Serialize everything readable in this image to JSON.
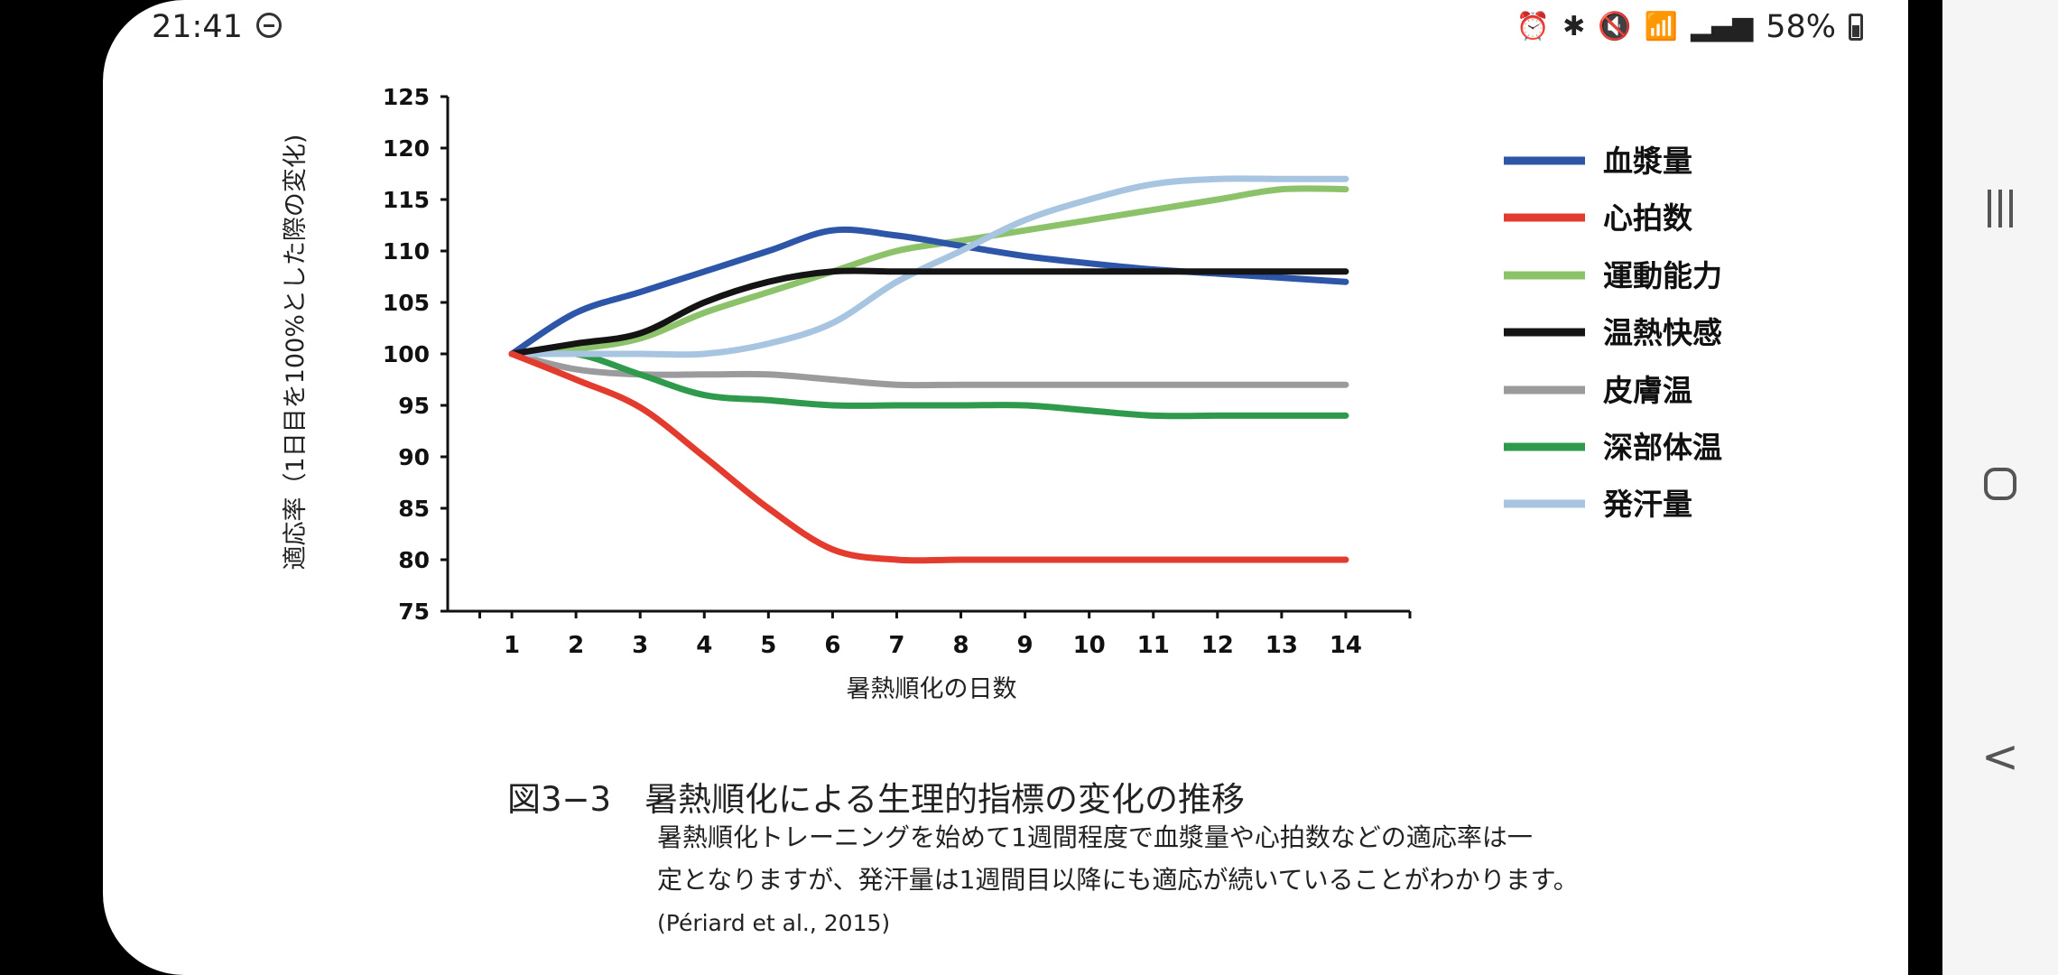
{
  "status_bar": {
    "time": "21:41",
    "battery": "58%",
    "icons": [
      "dnd-icon",
      "alarm-icon",
      "bluetooth-icon",
      "mute-icon",
      "wifi-icon",
      "signal-icon",
      "battery-icon"
    ]
  },
  "caption": {
    "title": "図3−3　暑熱順化による生理的指標の変化の推移",
    "line1": "暑熱順化トレーニングを始めて1週間程度で血漿量や心拍数などの適応率は一",
    "line2": "定となりますが、発汗量は1週間目以降にも適応が続いていることがわかります。",
    "source": "(Périard et al., 2015)"
  },
  "nav_bar": {
    "buttons": [
      "recent-apps-button",
      "home-button",
      "back-button"
    ]
  },
  "chart_data": {
    "type": "line",
    "xlabel": "暑熱順化の日数",
    "ylabel": "適応率（1日目を100%とした際の変化)",
    "x": [
      1,
      2,
      3,
      4,
      5,
      6,
      7,
      8,
      9,
      10,
      11,
      12,
      13,
      14
    ],
    "xlim": [
      0,
      15
    ],
    "ylim": [
      75,
      125
    ],
    "yticks": [
      75,
      80,
      85,
      90,
      95,
      100,
      105,
      110,
      115,
      120,
      125
    ],
    "grid": false,
    "legend_position": "right",
    "series": [
      {
        "name": "血漿量",
        "color": "#2d55a8",
        "values": [
          100,
          104,
          106,
          108,
          110,
          112,
          111.5,
          110.5,
          109.5,
          108.8,
          108.2,
          107.8,
          107.4,
          107
        ]
      },
      {
        "name": "心拍数",
        "color": "#e43b2f",
        "values": [
          100,
          97.5,
          94.8,
          90,
          85,
          81,
          80,
          80,
          80,
          80,
          80,
          80,
          80,
          80
        ]
      },
      {
        "name": "運動能力",
        "color": "#8cc36a",
        "values": [
          100,
          100.5,
          101.5,
          104,
          106,
          108,
          110,
          111,
          112,
          113,
          114,
          115,
          116,
          116
        ]
      },
      {
        "name": "温熱快感",
        "color": "#141414",
        "values": [
          100,
          101,
          102,
          105,
          107,
          108,
          108,
          108,
          108,
          108,
          108,
          108,
          108,
          108
        ]
      },
      {
        "name": "皮膚温",
        "color": "#9b9b9d",
        "values": [
          100,
          98.5,
          98,
          98,
          98,
          97.5,
          97,
          97,
          97,
          97,
          97,
          97,
          97,
          97
        ]
      },
      {
        "name": "深部体温",
        "color": "#2f9a4c",
        "values": [
          100,
          100,
          98,
          96,
          95.5,
          95,
          95,
          95,
          95,
          94.5,
          94,
          94,
          94,
          94
        ]
      },
      {
        "name": "発汗量",
        "color": "#a7c4e0",
        "values": [
          100,
          100,
          100,
          100,
          101,
          103,
          107,
          110,
          113,
          115,
          116.5,
          117,
          117,
          117
        ]
      }
    ]
  }
}
